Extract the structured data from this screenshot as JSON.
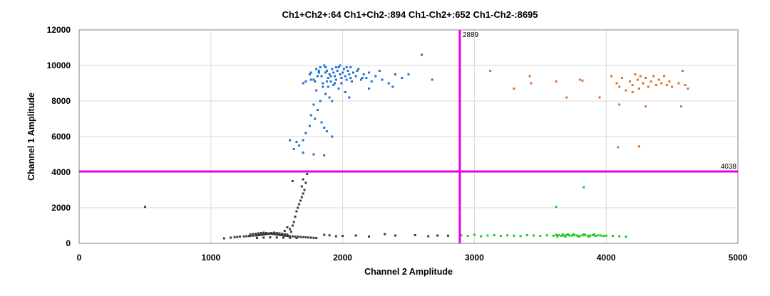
{
  "chart_data": {
    "type": "scatter",
    "title": "Ch1+Ch2+:64  Ch1+Ch2-:894  Ch1-Ch2+:652  Ch1-Ch2-:8695",
    "xlabel": "Channel 2 Amplitude",
    "ylabel": "Channel 1 Amplitude",
    "xlim": [
      0,
      5000
    ],
    "ylim": [
      0,
      12000
    ],
    "xticks": [
      0,
      1000,
      2000,
      3000,
      4000,
      5000
    ],
    "yticks": [
      0,
      2000,
      4000,
      6000,
      8000,
      10000,
      12000
    ],
    "xtick_labels": [
      "0",
      "1000",
      "2000",
      "3000",
      "4000",
      "5000"
    ],
    "ytick_labels": [
      "0",
      "2000",
      "4000",
      "6000",
      "8000",
      "10000",
      "12000"
    ],
    "grid": true,
    "thresholds": {
      "channel2": {
        "value": 2889,
        "label": "2889",
        "color": "#e600e6"
      },
      "channel1": {
        "value": 4038,
        "label": "4038",
        "color": "#e600e6"
      }
    },
    "series": [
      {
        "quadrant": "Ch1-Ch2-",
        "color": "#3c3c3c",
        "points": [
          [
            1100,
            280
          ],
          [
            1150,
            320
          ],
          [
            1180,
            350
          ],
          [
            1200,
            360
          ],
          [
            1220,
            380
          ],
          [
            1250,
            390
          ],
          [
            1270,
            400
          ],
          [
            1290,
            410
          ],
          [
            1300,
            420
          ],
          [
            1320,
            430
          ],
          [
            1340,
            440
          ],
          [
            1350,
            450
          ],
          [
            1360,
            460
          ],
          [
            1370,
            470
          ],
          [
            1380,
            480
          ],
          [
            1390,
            490
          ],
          [
            1400,
            500
          ],
          [
            1410,
            510
          ],
          [
            1420,
            520
          ],
          [
            1430,
            530
          ],
          [
            1440,
            540
          ],
          [
            1450,
            550
          ],
          [
            1460,
            540
          ],
          [
            1470,
            530
          ],
          [
            1480,
            520
          ],
          [
            1490,
            510
          ],
          [
            1500,
            500
          ],
          [
            1510,
            490
          ],
          [
            1520,
            480
          ],
          [
            1530,
            470
          ],
          [
            1540,
            460
          ],
          [
            1550,
            450
          ],
          [
            1560,
            440
          ],
          [
            1570,
            430
          ],
          [
            1580,
            420
          ],
          [
            1590,
            410
          ],
          [
            1600,
            400
          ],
          [
            1620,
            390
          ],
          [
            1640,
            380
          ],
          [
            1660,
            370
          ],
          [
            1680,
            360
          ],
          [
            1700,
            350
          ],
          [
            1720,
            340
          ],
          [
            1740,
            330
          ],
          [
            1760,
            320
          ],
          [
            1780,
            310
          ],
          [
            1800,
            300
          ],
          [
            1300,
            500
          ],
          [
            1320,
            520
          ],
          [
            1340,
            540
          ],
          [
            1360,
            560
          ],
          [
            1380,
            580
          ],
          [
            1400,
            600
          ],
          [
            1420,
            580
          ],
          [
            1440,
            560
          ],
          [
            1460,
            580
          ],
          [
            1480,
            600
          ],
          [
            1500,
            580
          ],
          [
            1520,
            560
          ],
          [
            1540,
            540
          ],
          [
            1560,
            520
          ],
          [
            1580,
            500
          ],
          [
            1350,
            300
          ],
          [
            1400,
            320
          ],
          [
            1450,
            340
          ],
          [
            1500,
            330
          ],
          [
            1550,
            320
          ],
          [
            1600,
            310
          ],
          [
            1650,
            300
          ],
          [
            1600,
            800
          ],
          [
            1620,
            1000
          ],
          [
            1630,
            1200
          ],
          [
            1640,
            1500
          ],
          [
            1650,
            1800
          ],
          [
            1660,
            2000
          ],
          [
            1670,
            2200
          ],
          [
            1680,
            2400
          ],
          [
            1690,
            2600
          ],
          [
            1700,
            2800
          ],
          [
            1710,
            3000
          ],
          [
            1690,
            3200
          ],
          [
            1720,
            3400
          ],
          [
            1700,
            3600
          ],
          [
            1730,
            3900
          ],
          [
            1620,
            3500
          ],
          [
            1580,
            900
          ],
          [
            1560,
            700
          ],
          [
            1610,
            650
          ],
          [
            500,
            2050
          ],
          [
            1900,
            450
          ],
          [
            2000,
            420
          ],
          [
            2100,
            440
          ],
          [
            2320,
            520
          ],
          [
            2400,
            440
          ],
          [
            2550,
            460
          ],
          [
            2650,
            400
          ],
          [
            2720,
            440
          ],
          [
            2800,
            430
          ],
          [
            1860,
            480
          ],
          [
            1950,
            400
          ],
          [
            2200,
            380
          ]
        ]
      },
      {
        "quadrant": "Ch1+Ch2-",
        "color": "#1e73d2",
        "points": [
          [
            1700,
            9000
          ],
          [
            1720,
            9100
          ],
          [
            1750,
            9500
          ],
          [
            1780,
            9200
          ],
          [
            1800,
            9800
          ],
          [
            1820,
            9600
          ],
          [
            1840,
            9400
          ],
          [
            1850,
            9000
          ],
          [
            1860,
            10000
          ],
          [
            1870,
            9900
          ],
          [
            1880,
            9700
          ],
          [
            1890,
            9300
          ],
          [
            1900,
            9500
          ],
          [
            1910,
            9100
          ],
          [
            1920,
            9800
          ],
          [
            1930,
            9600
          ],
          [
            1940,
            9400
          ],
          [
            1950,
            9200
          ],
          [
            1960,
            9700
          ],
          [
            1970,
            9900
          ],
          [
            1980,
            9500
          ],
          [
            1990,
            9300
          ],
          [
            2000,
            9600
          ],
          [
            2010,
            9800
          ],
          [
            2020,
            9400
          ],
          [
            2030,
            9200
          ],
          [
            2040,
            9700
          ],
          [
            2050,
            9500
          ],
          [
            2060,
            9300
          ],
          [
            2080,
            9600
          ],
          [
            2100,
            9400
          ],
          [
            2120,
            9800
          ],
          [
            2140,
            9200
          ],
          [
            2160,
            9500
          ],
          [
            2180,
            9300
          ],
          [
            2200,
            9600
          ],
          [
            2220,
            9100
          ],
          [
            2250,
            9400
          ],
          [
            2280,
            9700
          ],
          [
            2300,
            9200
          ],
          [
            2350,
            9000
          ],
          [
            2400,
            9500
          ],
          [
            2450,
            9300
          ],
          [
            2500,
            9500
          ],
          [
            2600,
            10600
          ],
          [
            2680,
            9200
          ],
          [
            2380,
            8800
          ],
          [
            2200,
            8700
          ],
          [
            1760,
            9600
          ],
          [
            1790,
            9100
          ],
          [
            1810,
            9400
          ],
          [
            1830,
            9900
          ],
          [
            1870,
            9600
          ],
          [
            1910,
            9400
          ],
          [
            1950,
            9900
          ],
          [
            1990,
            9000
          ],
          [
            2030,
            9900
          ],
          [
            2070,
            9100
          ],
          [
            2110,
            9700
          ],
          [
            2150,
            9300
          ],
          [
            1880,
            9100
          ],
          [
            1940,
            9000
          ],
          [
            1760,
            9200
          ],
          [
            1820,
            9700
          ],
          [
            1980,
            10000
          ],
          [
            2060,
            9900
          ],
          [
            1890,
            8800
          ],
          [
            1930,
            8900
          ],
          [
            1970,
            8700
          ],
          [
            1850,
            8800
          ],
          [
            1800,
            8600
          ],
          [
            1870,
            8400
          ],
          [
            1900,
            8200
          ],
          [
            1920,
            8000
          ],
          [
            1830,
            8000
          ],
          [
            1780,
            7800
          ],
          [
            1810,
            7500
          ],
          [
            1760,
            7200
          ],
          [
            1790,
            7000
          ],
          [
            1840,
            6800
          ],
          [
            1860,
            6500
          ],
          [
            1880,
            6300
          ],
          [
            1750,
            6600
          ],
          [
            1720,
            6200
          ],
          [
            1700,
            5800
          ],
          [
            1650,
            5700
          ],
          [
            1670,
            5500
          ],
          [
            1600,
            5800
          ],
          [
            1630,
            5300
          ],
          [
            1700,
            5100
          ],
          [
            1780,
            5000
          ],
          [
            1860,
            4950
          ],
          [
            1920,
            6000
          ],
          [
            2020,
            8500
          ],
          [
            2050,
            8200
          ]
        ]
      },
      {
        "quadrant": "Ch1+Ch2+",
        "color": "#e07020",
        "points": [
          [
            3120,
            9700
          ],
          [
            3300,
            8700
          ],
          [
            3420,
            9400
          ],
          [
            3430,
            9000
          ],
          [
            3620,
            9100
          ],
          [
            3700,
            8200
          ],
          [
            3800,
            9200
          ],
          [
            3820,
            9150
          ],
          [
            3950,
            8200
          ],
          [
            4040,
            9400
          ],
          [
            4080,
            9000
          ],
          [
            4100,
            8800
          ],
          [
            4120,
            9300
          ],
          [
            4150,
            8600
          ],
          [
            4180,
            9100
          ],
          [
            4200,
            8900
          ],
          [
            4220,
            9500
          ],
          [
            4240,
            9200
          ],
          [
            4250,
            8700
          ],
          [
            4260,
            9400
          ],
          [
            4280,
            9000
          ],
          [
            4300,
            9300
          ],
          [
            4320,
            8800
          ],
          [
            4340,
            9100
          ],
          [
            4360,
            9400
          ],
          [
            4380,
            8900
          ],
          [
            4400,
            9200
          ],
          [
            4420,
            9000
          ],
          [
            4440,
            9400
          ],
          [
            4460,
            8900
          ],
          [
            4480,
            9100
          ],
          [
            4500,
            8800
          ],
          [
            4550,
            9000
          ],
          [
            4580,
            9700
          ],
          [
            4600,
            8900
          ],
          [
            4620,
            8700
          ],
          [
            4100,
            7800
          ],
          [
            4300,
            7700
          ],
          [
            4570,
            7700
          ],
          [
            4200,
            8500
          ],
          [
            4090,
            5400
          ],
          [
            4250,
            5450
          ]
        ]
      },
      {
        "quadrant": "Ch1-Ch2+",
        "color": "#1ec81e",
        "points": [
          [
            2900,
            450
          ],
          [
            2950,
            420
          ],
          [
            3000,
            480
          ],
          [
            3050,
            400
          ],
          [
            3100,
            440
          ],
          [
            3150,
            460
          ],
          [
            3200,
            420
          ],
          [
            3250,
            450
          ],
          [
            3300,
            430
          ],
          [
            3350,
            410
          ],
          [
            3400,
            460
          ],
          [
            3450,
            440
          ],
          [
            3500,
            420
          ],
          [
            3550,
            450
          ],
          [
            3600,
            430
          ],
          [
            3620,
            480
          ],
          [
            3640,
            460
          ],
          [
            3660,
            420
          ],
          [
            3680,
            440
          ],
          [
            3700,
            470
          ],
          [
            3720,
            450
          ],
          [
            3740,
            430
          ],
          [
            3760,
            460
          ],
          [
            3780,
            440
          ],
          [
            3800,
            420
          ],
          [
            3820,
            450
          ],
          [
            3840,
            470
          ],
          [
            3860,
            430
          ],
          [
            3880,
            440
          ],
          [
            3900,
            460
          ],
          [
            3920,
            420
          ],
          [
            3940,
            450
          ],
          [
            3960,
            440
          ],
          [
            3980,
            410
          ],
          [
            4000,
            430
          ],
          [
            4050,
            420
          ],
          [
            4100,
            400
          ],
          [
            4150,
            380
          ],
          [
            3690,
            380
          ],
          [
            3710,
            500
          ],
          [
            3750,
            510
          ],
          [
            3790,
            380
          ],
          [
            3830,
            500
          ],
          [
            3870,
            380
          ],
          [
            3910,
            500
          ],
          [
            3630,
            390
          ],
          [
            3670,
            510
          ],
          [
            3620,
            2050
          ],
          [
            3830,
            3150
          ]
        ]
      }
    ]
  }
}
